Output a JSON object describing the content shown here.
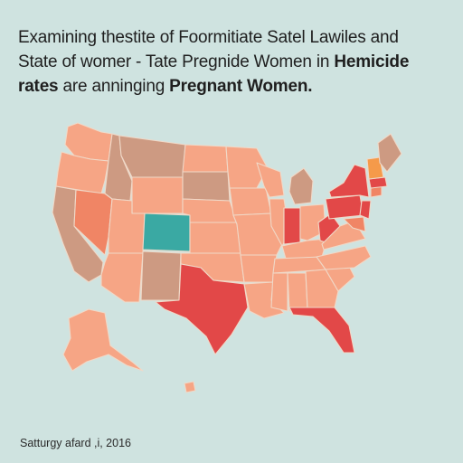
{
  "title": {
    "line1": "Examining thestite of Foormitiate Satel Lawiles and",
    "line2_plain": "State of womer - Tate Pregnide Women in ",
    "line2_bold": "Hemicide",
    "line3_bold_a": "rates",
    "line3_plain": " are anninging ",
    "line3_bold_b": "Pregnant Women."
  },
  "caption": "Satturgy afard ,i, 2016",
  "colors": {
    "background": "#cfe3e0",
    "light_peach": "#f6a585",
    "tan": "#cd9a82",
    "salmon": "#f08565",
    "red": "#e24848",
    "teal": "#3aa9a3",
    "orange": "#f59a4a"
  }
}
